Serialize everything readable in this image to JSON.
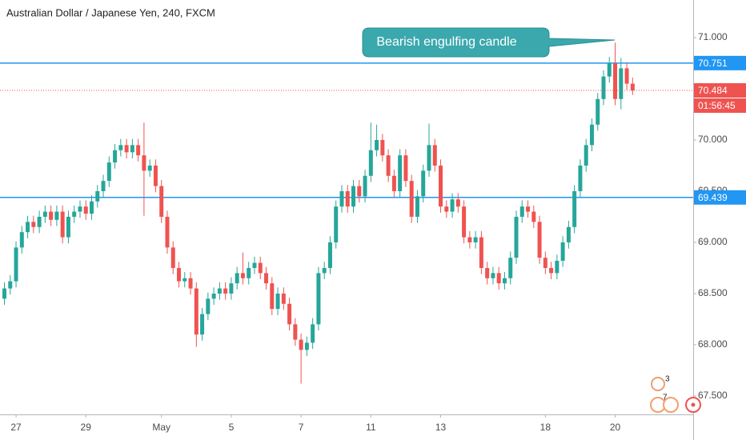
{
  "chart_data": {
    "type": "candlestick",
    "title": "Australian Dollar / Japanese Yen, 240, FXCM",
    "annotation": "Bearish engulfing candle",
    "countdown": "01:56:45",
    "badges": [
      "3",
      "7"
    ],
    "up_color": "#26a69a",
    "down_color": "#ef5350",
    "categories": [
      null,
      null,
      "27",
      null,
      null,
      null,
      null,
      null,
      null,
      null,
      null,
      null,
      null,
      null,
      "29",
      null,
      null,
      null,
      null,
      null,
      null,
      null,
      null,
      null,
      null,
      null,
      null,
      "May",
      null,
      null,
      null,
      null,
      null,
      null,
      null,
      null,
      null,
      null,
      null,
      "5",
      null,
      null,
      null,
      null,
      null,
      null,
      null,
      null,
      null,
      null,
      null,
      "7",
      null,
      null,
      null,
      null,
      null,
      null,
      null,
      null,
      null,
      null,
      null,
      "11",
      null,
      null,
      null,
      null,
      null,
      null,
      null,
      null,
      null,
      null,
      null,
      "13",
      null,
      null,
      null,
      null,
      null,
      null,
      null,
      null,
      null,
      null,
      null,
      null,
      null,
      null,
      null,
      null,
      null,
      "18",
      null,
      null,
      null,
      null,
      null,
      null,
      null,
      null,
      null,
      null,
      null,
      "20",
      null,
      null,
      null
    ],
    "open": [
      68.45,
      68.55,
      68.62,
      68.95,
      69.1,
      69.2,
      69.15,
      69.25,
      69.3,
      69.22,
      69.3,
      69.05,
      69.25,
      69.3,
      69.35,
      69.28,
      69.4,
      69.5,
      69.6,
      69.78,
      69.9,
      69.95,
      69.88,
      69.95,
      69.85,
      69.7,
      69.75,
      69.55,
      69.25,
      68.95,
      68.75,
      68.62,
      68.65,
      68.55,
      68.1,
      68.3,
      68.45,
      68.5,
      68.55,
      68.5,
      68.6,
      68.7,
      68.65,
      68.75,
      68.8,
      68.7,
      68.6,
      68.35,
      68.5,
      68.4,
      68.2,
      68.05,
      67.95,
      68.02,
      68.2,
      68.7,
      68.75,
      69.0,
      69.35,
      69.5,
      69.35,
      69.55,
      69.45,
      69.65,
      69.9,
      70.0,
      69.85,
      69.65,
      69.5,
      69.85,
      69.6,
      69.25,
      69.45,
      69.7,
      69.95,
      69.75,
      69.35,
      69.3,
      69.42,
      69.35,
      69.05,
      69.0,
      69.05,
      68.75,
      68.65,
      68.7,
      68.6,
      68.65,
      68.85,
      69.25,
      69.35,
      69.3,
      69.2,
      68.85,
      68.75,
      68.7,
      68.82,
      69.0,
      69.15,
      69.5,
      69.75,
      69.95,
      70.15,
      70.4,
      70.62,
      70.75,
      70.4,
      70.7,
      70.55
    ],
    "high": [
      68.61,
      68.68,
      69.01,
      69.16,
      69.26,
      69.26,
      69.31,
      69.36,
      69.36,
      69.36,
      69.36,
      69.31,
      69.36,
      69.41,
      69.41,
      69.46,
      69.56,
      69.66,
      69.84,
      69.96,
      70.01,
      70.01,
      70.01,
      70.01,
      70.17,
      69.81,
      69.81,
      69.61,
      69.31,
      69.01,
      68.81,
      68.71,
      68.71,
      68.61,
      68.36,
      68.51,
      68.56,
      68.61,
      68.61,
      68.66,
      68.76,
      68.9,
      68.81,
      68.86,
      68.86,
      68.76,
      68.66,
      68.56,
      68.56,
      68.46,
      68.26,
      68.11,
      68.08,
      68.26,
      68.76,
      68.81,
      69.06,
      69.41,
      69.56,
      69.56,
      69.61,
      69.61,
      69.71,
      70.17,
      70.15,
      70.06,
      69.91,
      69.71,
      69.91,
      69.91,
      69.66,
      69.51,
      69.76,
      70.16,
      70.01,
      69.81,
      69.41,
      69.48,
      69.48,
      69.41,
      69.11,
      69.11,
      69.11,
      68.81,
      68.76,
      68.76,
      68.71,
      68.91,
      69.31,
      69.41,
      69.41,
      69.36,
      69.26,
      68.91,
      68.81,
      68.88,
      69.06,
      69.21,
      69.56,
      69.81,
      70.01,
      70.21,
      70.46,
      70.68,
      70.81,
      70.95,
      70.8,
      70.76,
      70.61
    ],
    "low": [
      68.39,
      68.49,
      68.56,
      68.89,
      69.04,
      69.09,
      69.09,
      69.19,
      69.16,
      69.16,
      68.99,
      68.99,
      69.19,
      69.24,
      69.22,
      69.22,
      69.34,
      69.44,
      69.54,
      69.72,
      69.84,
      69.82,
      69.82,
      69.79,
      69.26,
      69.64,
      69.49,
      69.19,
      68.89,
      68.69,
      68.56,
      68.56,
      68.49,
      67.98,
      68.04,
      68.24,
      68.39,
      68.44,
      68.44,
      68.44,
      68.54,
      68.59,
      68.59,
      68.69,
      68.64,
      68.54,
      68.29,
      68.29,
      68.34,
      68.14,
      67.99,
      67.62,
      67.89,
      67.96,
      68.14,
      68.64,
      68.69,
      68.94,
      69.29,
      69.29,
      69.29,
      69.39,
      69.39,
      69.59,
      69.84,
      69.79,
      69.59,
      69.44,
      69.44,
      69.54,
      69.19,
      69.19,
      69.39,
      69.64,
      69.69,
      69.29,
      69.24,
      69.24,
      69.29,
      68.99,
      68.94,
      68.94,
      68.69,
      68.59,
      68.59,
      68.54,
      68.54,
      68.59,
      68.79,
      69.19,
      69.24,
      69.14,
      68.79,
      68.69,
      68.64,
      68.64,
      68.76,
      68.94,
      69.09,
      69.44,
      69.69,
      69.89,
      70.09,
      70.34,
      70.56,
      70.34,
      70.3,
      70.49,
      70.44
    ],
    "close": [
      68.55,
      68.62,
      68.95,
      69.1,
      69.2,
      69.15,
      69.25,
      69.3,
      69.22,
      69.3,
      69.05,
      69.25,
      69.3,
      69.35,
      69.28,
      69.4,
      69.5,
      69.6,
      69.78,
      69.9,
      69.95,
      69.88,
      69.95,
      69.85,
      69.7,
      69.75,
      69.55,
      69.25,
      68.95,
      68.75,
      68.62,
      68.65,
      68.55,
      68.1,
      68.3,
      68.45,
      68.5,
      68.55,
      68.5,
      68.6,
      68.7,
      68.65,
      68.75,
      68.8,
      68.7,
      68.6,
      68.35,
      68.5,
      68.4,
      68.2,
      68.05,
      67.95,
      68.02,
      68.2,
      68.7,
      68.75,
      69.0,
      69.35,
      69.5,
      69.35,
      69.55,
      69.45,
      69.65,
      69.9,
      70.0,
      69.85,
      69.65,
      69.5,
      69.85,
      69.6,
      69.25,
      69.45,
      69.7,
      69.95,
      69.75,
      69.35,
      69.3,
      69.42,
      69.35,
      69.05,
      69.0,
      69.05,
      68.75,
      68.65,
      68.7,
      68.6,
      68.65,
      68.85,
      69.25,
      69.35,
      69.3,
      69.2,
      68.85,
      68.75,
      68.7,
      68.82,
      69.0,
      69.15,
      69.5,
      69.75,
      69.95,
      70.15,
      70.4,
      70.62,
      70.75,
      70.4,
      70.7,
      70.55,
      70.484
    ],
    "horizontal_lines": [
      {
        "value": 70.751,
        "color": "#2196f3"
      },
      {
        "value": 69.439,
        "color": "#2196f3"
      }
    ],
    "ylim": [
      67.32,
      71.367
    ],
    "yticks": [
      {
        "value": 67.5,
        "label": "67.500"
      },
      {
        "value": 68,
        "label": "68.000"
      },
      {
        "value": 68.5,
        "label": "68.500"
      },
      {
        "value": 69,
        "label": "69.000"
      },
      {
        "value": 69.5,
        "label": "69.500"
      },
      {
        "value": 70,
        "label": "70.000"
      },
      {
        "value": 70.5,
        "label": "70.500"
      },
      {
        "value": 71,
        "label": "71.000"
      }
    ],
    "grid": false
  }
}
